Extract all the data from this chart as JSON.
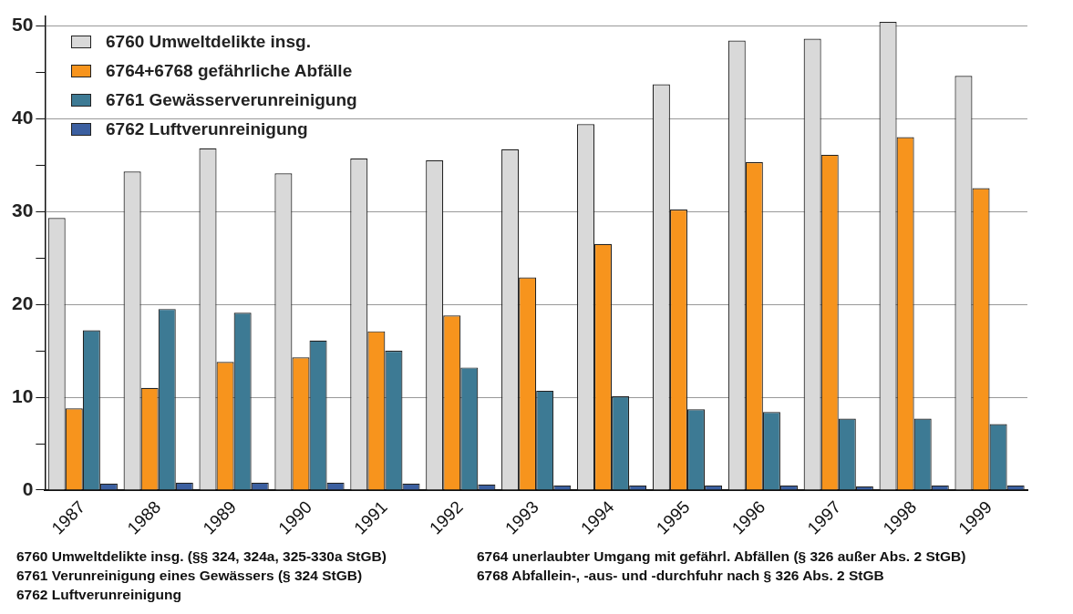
{
  "chart_data": {
    "type": "bar",
    "categories": [
      "1987",
      "1988",
      "1989",
      "1990",
      "1991",
      "1992",
      "1993",
      "1994",
      "1995",
      "1996",
      "1997",
      "1998",
      "1999"
    ],
    "series": [
      {
        "name": "6760 Umweltdelikte insg.",
        "color": "#d9d9d9",
        "values": [
          29.3,
          34.3,
          36.8,
          34.1,
          35.7,
          35.5,
          36.7,
          39.4,
          43.7,
          48.4,
          48.6,
          50.4,
          44.6
        ]
      },
      {
        "name": "6764+6768 gefährliche Abfälle",
        "color": "#f7941d",
        "values": [
          8.8,
          11.0,
          13.8,
          14.3,
          17.1,
          18.8,
          22.9,
          26.5,
          30.2,
          35.3,
          36.1,
          38.0,
          32.5
        ]
      },
      {
        "name": "6761 Gewässerverunreinigung",
        "color": "#3d7a94",
        "values": [
          17.2,
          19.5,
          19.1,
          16.1,
          15.0,
          13.2,
          10.7,
          10.1,
          8.7,
          8.4,
          7.7,
          7.7,
          7.1
        ]
      },
      {
        "name": "6762 Luftverunreinigung",
        "color": "#3b5fa0",
        "values": [
          0.7,
          0.8,
          0.8,
          0.8,
          0.7,
          0.6,
          0.5,
          0.5,
          0.5,
          0.5,
          0.4,
          0.5,
          0.5
        ]
      }
    ],
    "ylim": [
      0,
      51
    ],
    "yticks": [
      0,
      {
        "value": 5,
        "label": null
      },
      10,
      {
        "value": 15,
        "label": null
      },
      20,
      {
        "value": 25,
        "label": null
      },
      30,
      {
        "value": 35,
        "label": null
      },
      40,
      {
        "value": 45,
        "label": null
      },
      50
    ],
    "grid": "y",
    "legend": "top left",
    "annotations": [
      "6760 Umweltdelikte insg. (§§ 324, 324a, 325-330a StGB)",
      "6761 Verunreinigung eines Gewässers (§ 324 StGB)",
      "6762 Luftverunreinigung",
      "6764 unerlaubter Umgang mit gefährl. Abfällen (§ 326 außer Abs. 2 StGB)",
      "6768 Abfallein-, -aus- und -durchfuhr nach § 326 Abs. 2 StGB"
    ]
  }
}
